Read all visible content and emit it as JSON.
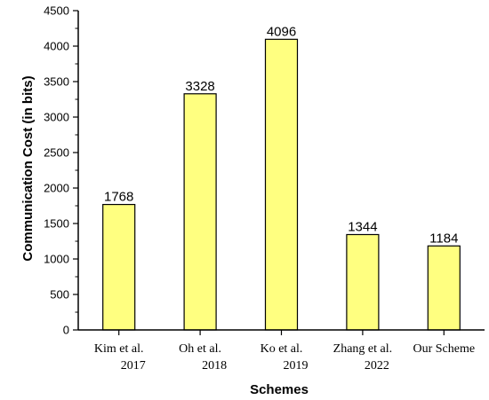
{
  "chart_data": {
    "type": "bar",
    "categories": [
      [
        "Kim et al.",
        "2017"
      ],
      [
        "Oh et al.",
        "2018"
      ],
      [
        "Ko et al.",
        "2019"
      ],
      [
        "Zhang et al.",
        "2022"
      ],
      [
        "Our Scheme"
      ]
    ],
    "values": [
      1768,
      3328,
      4096,
      1344,
      1184
    ],
    "data_labels": [
      "1768",
      "3328",
      "4096",
      "1344",
      "1184"
    ],
    "title": "",
    "xlabel": "Schemes",
    "ylabel": "Communication Cost (in bits)",
    "ylim": [
      0,
      4500
    ],
    "yticks": [
      0,
      500,
      1000,
      1500,
      2000,
      2500,
      3000,
      3500,
      4000,
      4500
    ],
    "minor_ticks": true,
    "grid": false,
    "legend": "none",
    "colors": {
      "bar_fill": "#FFFF80",
      "bar_stroke": "#000000",
      "axis": "#000000"
    }
  }
}
